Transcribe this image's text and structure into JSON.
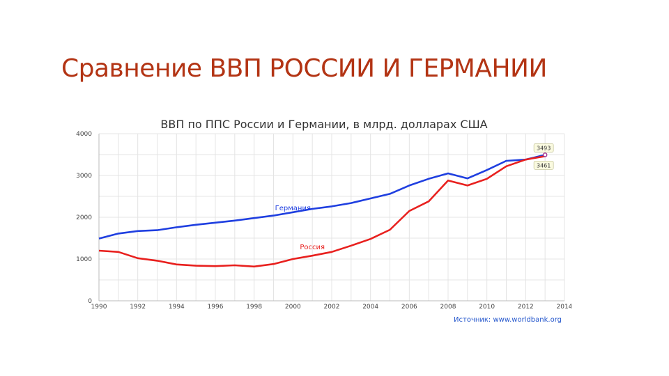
{
  "slide": {
    "title": "Сравнение ВВП РОССИИ И ГЕРМАНИИ"
  },
  "chart_data": {
    "type": "line",
    "title": "ВВП по ППС России и Германии, в млрд. долларах США",
    "source": "Источник: www.worldbank.org",
    "xlabel": "",
    "ylabel": "",
    "xlim": [
      1990,
      2014
    ],
    "ylim": [
      0,
      4000
    ],
    "x_ticks": [
      1990,
      1992,
      1994,
      1996,
      1998,
      2000,
      2002,
      2004,
      2006,
      2008,
      2010,
      2012,
      2014
    ],
    "y_ticks": [
      0,
      1000,
      2000,
      3000,
      4000
    ],
    "grid": true,
    "x": [
      1990,
      1991,
      1992,
      1993,
      1994,
      1995,
      1996,
      1997,
      1998,
      1999,
      2000,
      2001,
      2002,
      2003,
      2004,
      2005,
      2006,
      2007,
      2008,
      2009,
      2010,
      2011,
      2012,
      2013
    ],
    "series": [
      {
        "name": "Германия",
        "color": "#1f3fe0",
        "values": [
          1490,
          1610,
          1670,
          1690,
          1760,
          1820,
          1870,
          1920,
          1980,
          2040,
          2120,
          2200,
          2260,
          2340,
          2450,
          2560,
          2760,
          2920,
          3050,
          2930,
          3130,
          3350,
          3380,
          3493
        ],
        "end_label": "3493"
      },
      {
        "name": "Россия",
        "color": "#e8201e",
        "values": [
          1200,
          1170,
          1020,
          960,
          870,
          840,
          830,
          850,
          820,
          880,
          1000,
          1080,
          1170,
          1320,
          1480,
          1700,
          2150,
          2380,
          2880,
          2760,
          2920,
          3220,
          3380,
          3461
        ],
        "end_label": "3461"
      }
    ]
  }
}
